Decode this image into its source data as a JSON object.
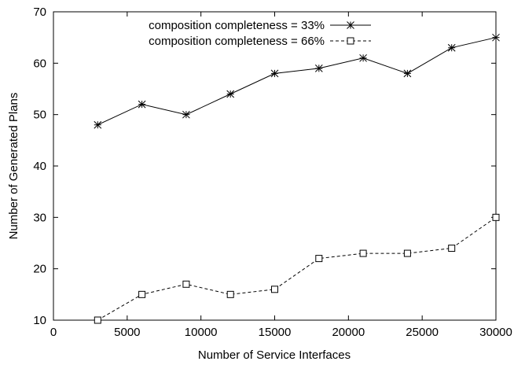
{
  "chart_data": {
    "type": "line",
    "xlabel": "Number of Service Interfaces",
    "ylabel": "Number of Generated Plans",
    "xlim": [
      0,
      30000
    ],
    "ylim": [
      10,
      70
    ],
    "xticks": [
      0,
      5000,
      10000,
      15000,
      20000,
      25000,
      30000
    ],
    "yticks": [
      10,
      20,
      30,
      40,
      50,
      60,
      70
    ],
    "grid": false,
    "legend_position": "top-left",
    "x": [
      3000,
      6000,
      9000,
      12000,
      15000,
      18000,
      21000,
      24000,
      27000,
      30000
    ],
    "series": [
      {
        "name": "composition completeness = 33%",
        "values": [
          48,
          52,
          50,
          54,
          58,
          59,
          61,
          58,
          63,
          65
        ],
        "line_style": "solid",
        "marker": "asterisk",
        "color": "#000000"
      },
      {
        "name": "composition completeness = 66%",
        "values": [
          10,
          15,
          17,
          15,
          16,
          22,
          23,
          23,
          24,
          30
        ],
        "line_style": "dashed",
        "marker": "square",
        "color": "#000000"
      }
    ]
  }
}
